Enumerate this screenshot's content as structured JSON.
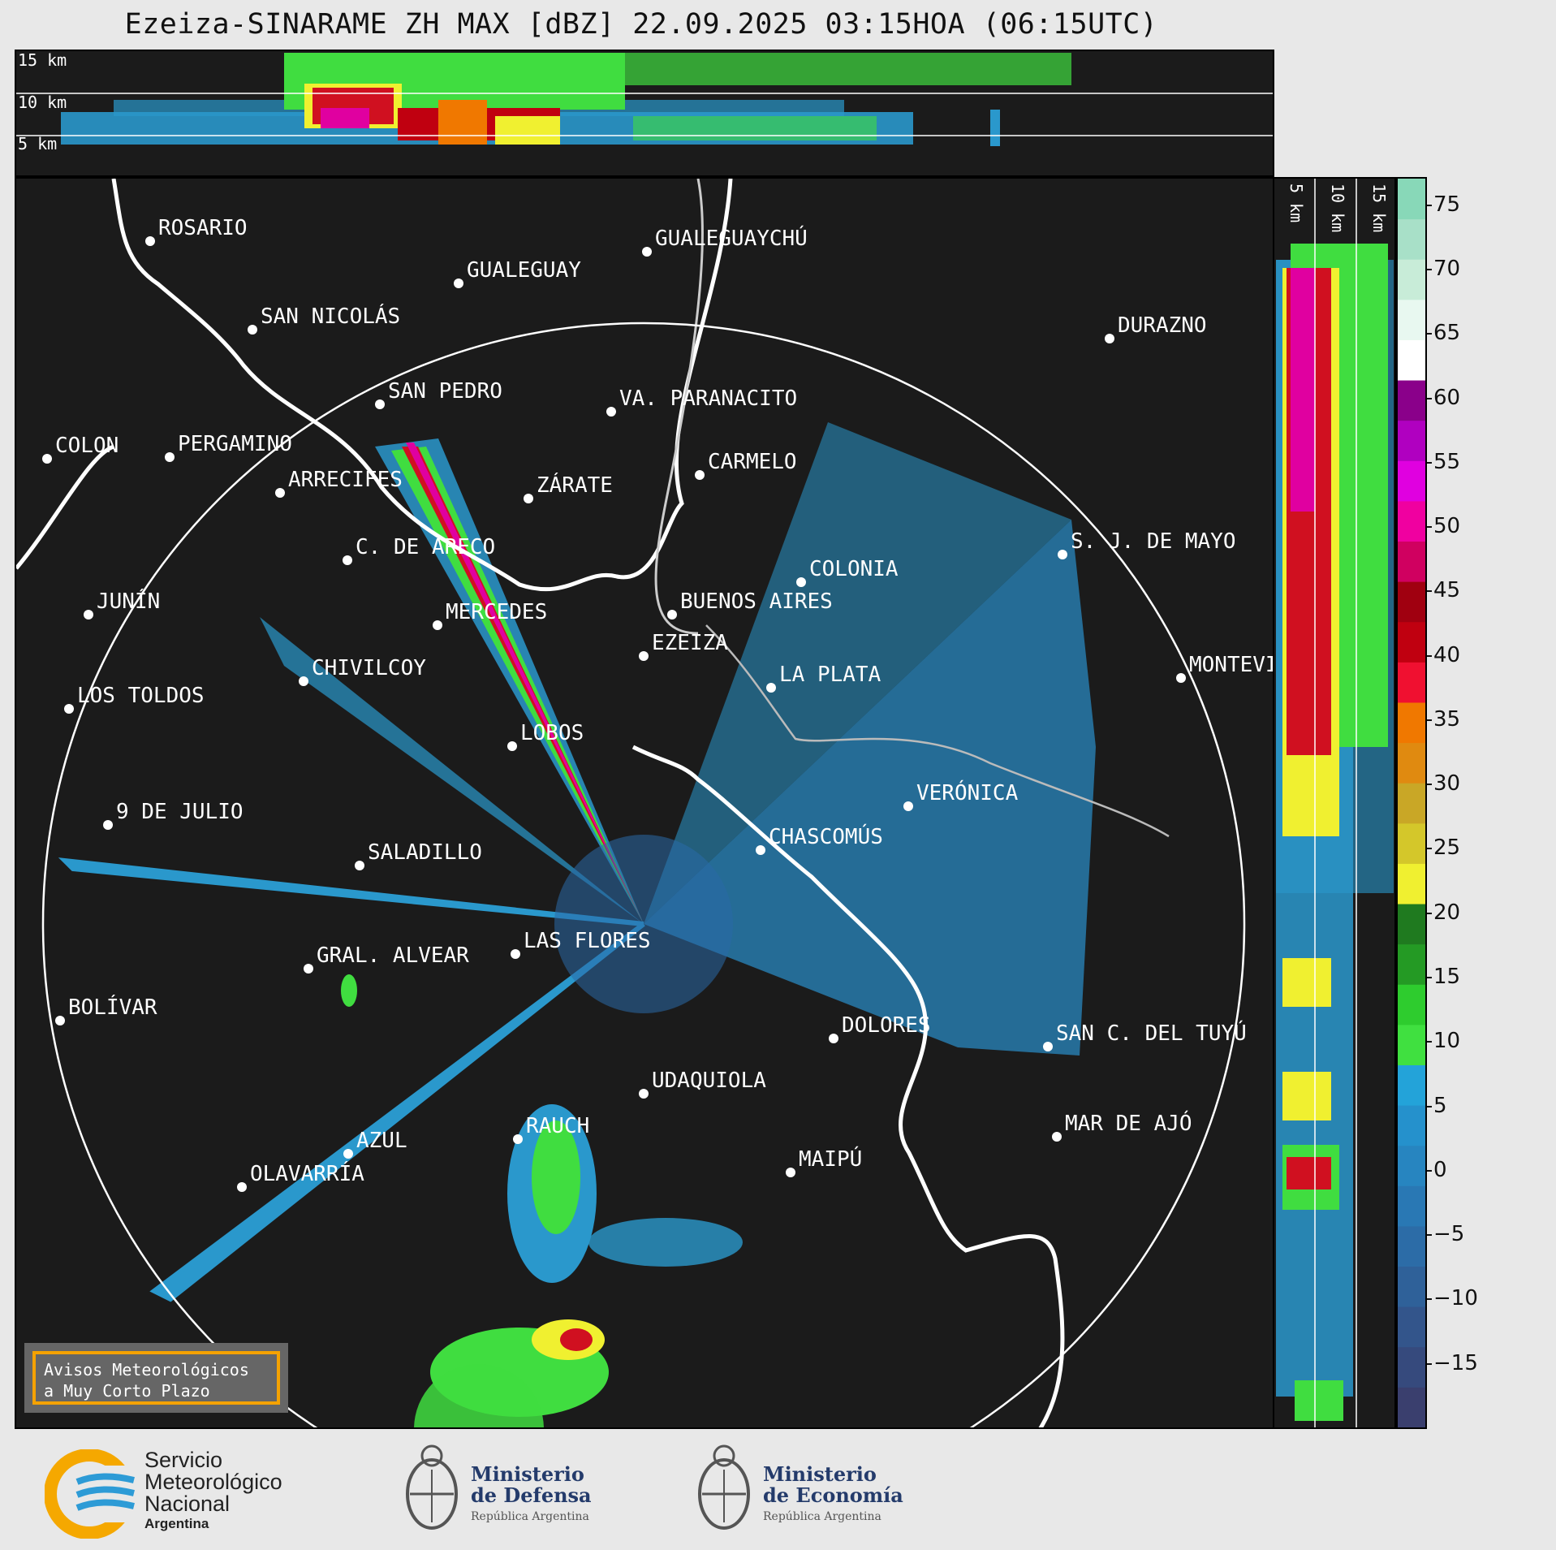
{
  "title": "Ezeiza-SINARAME ZH MAX [dBZ] 22.09.2025 03:15HOA (06:15UTC)",
  "top_panel": {
    "altitude_labels": [
      "15 km",
      "10 km",
      "5 km"
    ]
  },
  "side_panel": {
    "altitude_labels": [
      "5 km",
      "10 km",
      "15 km"
    ]
  },
  "colorbar": {
    "ticks": [
      "75",
      "70",
      "65",
      "60",
      "55",
      "50",
      "45",
      "40",
      "35",
      "30",
      "25",
      "20",
      "15",
      "10",
      "5",
      "0",
      "−5",
      "−10",
      "−15"
    ],
    "range_dbz": [
      -20,
      77
    ],
    "colors": [
      "#3a3f6e",
      "#364a7d",
      "#33558b",
      "#2f6199",
      "#2c6ca7",
      "#2978b4",
      "#2785c0",
      "#2591cc",
      "#23a3d9",
      "#40e040",
      "#2ecc2e",
      "#249a24",
      "#1f7a1f",
      "#f0f030",
      "#d4c72a",
      "#c9a726",
      "#e08a10",
      "#f07800",
      "#f01030",
      "#c00010",
      "#a00010",
      "#d00060",
      "#f000a0",
      "#e000e0",
      "#b000c0",
      "#8a008a",
      "#ffffff",
      "#e8f8f0",
      "#c8ecd8",
      "#a8e0c8",
      "#88d8b8"
    ]
  },
  "cities": [
    "ROSARIO",
    "GUALEGUAYCHÚ",
    "GUALEGUAY",
    "SAN NICOLÁS",
    "DURAZNO",
    "SAN PEDRO",
    "VA. PARANACITO",
    "COLON",
    "PERGAMINO",
    "CARMELO",
    "ARRECIFES",
    "ZÁRATE",
    "S. J. DE MAYO",
    "C. DE ARECO",
    "COLONIA",
    "BUENOS AIRES",
    "JUNÍN",
    "MERCEDES",
    "EZEIZA",
    "MONTEVIDEO",
    "LA PLATA",
    "CHIVILCOY",
    "LOS TOLDOS",
    "LOBOS",
    "VERÓNICA",
    "9 DE JULIO",
    "CHASCOMÚS",
    "SALADILLO",
    "GRAL. ALVEAR",
    "LAS FLORES",
    "BOLÍVAR",
    "DOLORES",
    "SAN C. DEL TUYÚ",
    "UDAQUIOLA",
    "AZUL",
    "RAUCH",
    "OLAVARRÍA",
    "MAR DE AJÓ",
    "MAIPÚ"
  ],
  "badge": {
    "line1": "Avisos Meteorológicos",
    "line2": "a Muy Corto Plazo"
  },
  "logos": {
    "smn": {
      "line1": "Servicio",
      "line2": "Meteorológico",
      "line3": "Nacional",
      "line4": "Argentina"
    },
    "defensa": {
      "line1": "Ministerio",
      "line2": "de Defensa",
      "line3": "República Argentina"
    },
    "economia": {
      "line1": "Ministerio",
      "line2": "de Economía",
      "line3": "República Argentina"
    }
  }
}
